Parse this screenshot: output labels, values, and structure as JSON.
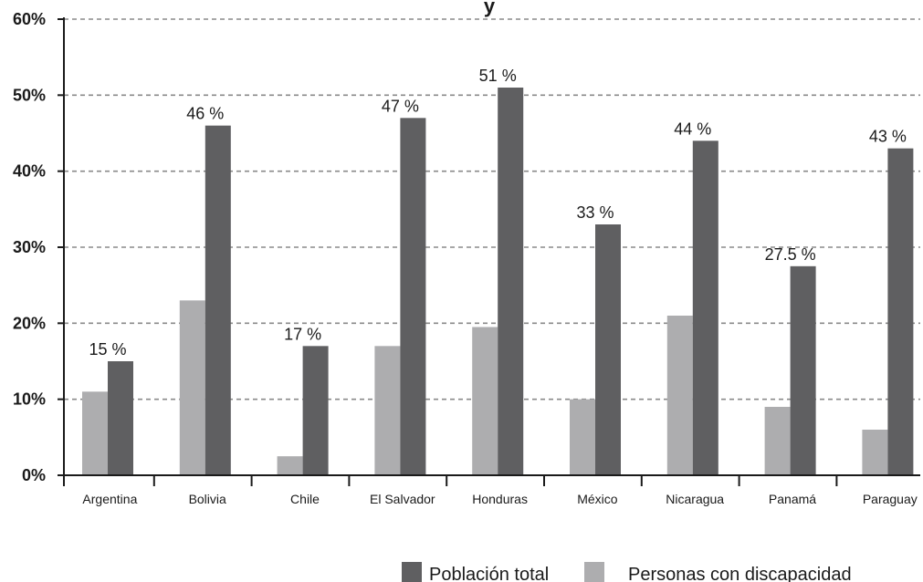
{
  "chart_data": {
    "type": "bar",
    "title_fragment": "y",
    "categories": [
      "Argentina",
      "Bolivia",
      "Chile",
      "El Salvador",
      "Honduras",
      "México",
      "Nicaragua",
      "Panamá",
      "Paraguay"
    ],
    "series": [
      {
        "name": "Personas con discapacidad",
        "color": "#adadaf",
        "values": [
          11,
          23,
          2.5,
          17,
          19.5,
          10,
          21,
          9,
          6
        ]
      },
      {
        "name": "Población total",
        "color": "#5f5f61",
        "values": [
          15,
          46,
          17,
          47,
          51,
          33,
          44,
          27.5,
          43
        ],
        "data_labels": [
          "15 %",
          "46 %",
          "17 %",
          "47 %",
          "51 %",
          "33 %",
          "44 %",
          "27.5 %",
          "43 %"
        ]
      }
    ],
    "ylim": [
      0,
      60
    ],
    "yticks": [
      0,
      10,
      20,
      30,
      40,
      50,
      60
    ],
    "ytick_labels": [
      "0%",
      "10%",
      "20%",
      "30%",
      "40%",
      "50%",
      "60%"
    ],
    "grid": "dashed horizontal",
    "legend_position": "bottom-right",
    "legend_order": [
      "Población total",
      "Personas con discapacidad"
    ]
  }
}
